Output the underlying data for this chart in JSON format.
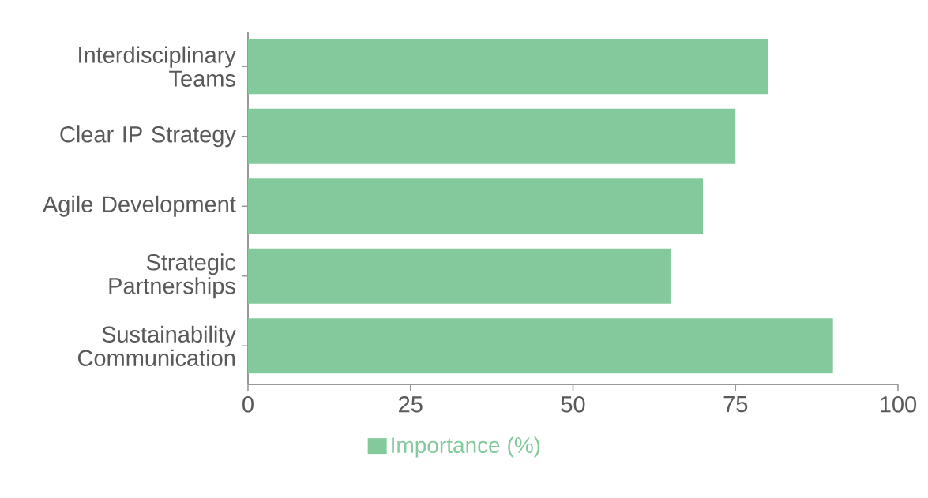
{
  "chart_data": {
    "type": "bar",
    "orientation": "horizontal",
    "categories": [
      "Interdisciplinary Teams",
      "Clear IP Strategy",
      "Agile Development",
      "Strategic Partnerships",
      "Sustainability Communication"
    ],
    "series": [
      {
        "name": "Importance (%)",
        "color": "#84c99c",
        "values": [
          80,
          75,
          70,
          65,
          90
        ]
      }
    ],
    "xlim": [
      0,
      100
    ],
    "xticks": [
      0,
      25,
      50,
      75,
      100
    ],
    "legend": "bottom"
  }
}
